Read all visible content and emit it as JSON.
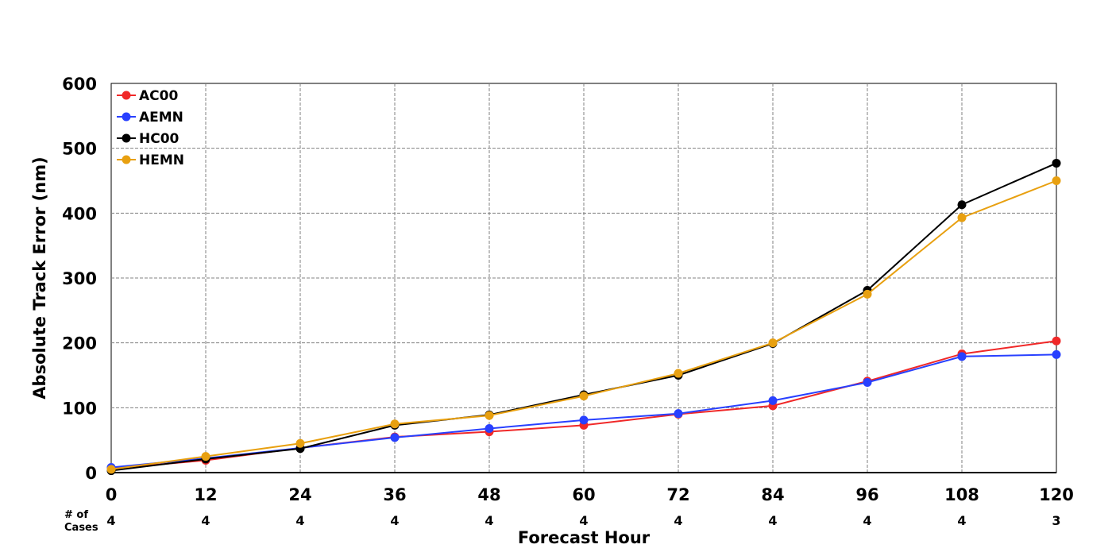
{
  "chart_data": {
    "type": "line",
    "xlabel": "Forecast Hour",
    "ylabel": "Absolute Track Error (nm)",
    "x": [
      0,
      12,
      24,
      36,
      48,
      60,
      72,
      84,
      96,
      108,
      120
    ],
    "xlim": [
      0,
      120
    ],
    "ylim": [
      0,
      600
    ],
    "yticks": [
      0,
      100,
      200,
      300,
      400,
      500,
      600
    ],
    "grid": true,
    "legend_position": "top-left",
    "cases_label": [
      "# of",
      "Cases"
    ],
    "cases": [
      4,
      4,
      4,
      4,
      4,
      4,
      4,
      4,
      4,
      4,
      3
    ],
    "series": [
      {
        "name": "AC00",
        "color": "#f02828",
        "values": [
          6,
          19,
          38,
          55,
          63,
          73,
          90,
          103,
          141,
          183,
          203
        ]
      },
      {
        "name": "AEMN",
        "color": "#2840ff",
        "values": [
          8,
          22,
          38,
          54,
          68,
          81,
          91,
          111,
          139,
          179,
          182
        ]
      },
      {
        "name": "HC00",
        "color": "#000000",
        "values": [
          3,
          21,
          37,
          73,
          89,
          120,
          150,
          199,
          281,
          413,
          477
        ]
      },
      {
        "name": "HEMN",
        "color": "#e8a010",
        "values": [
          5,
          25,
          45,
          75,
          88,
          118,
          153,
          200,
          275,
          393,
          450
        ]
      }
    ]
  }
}
